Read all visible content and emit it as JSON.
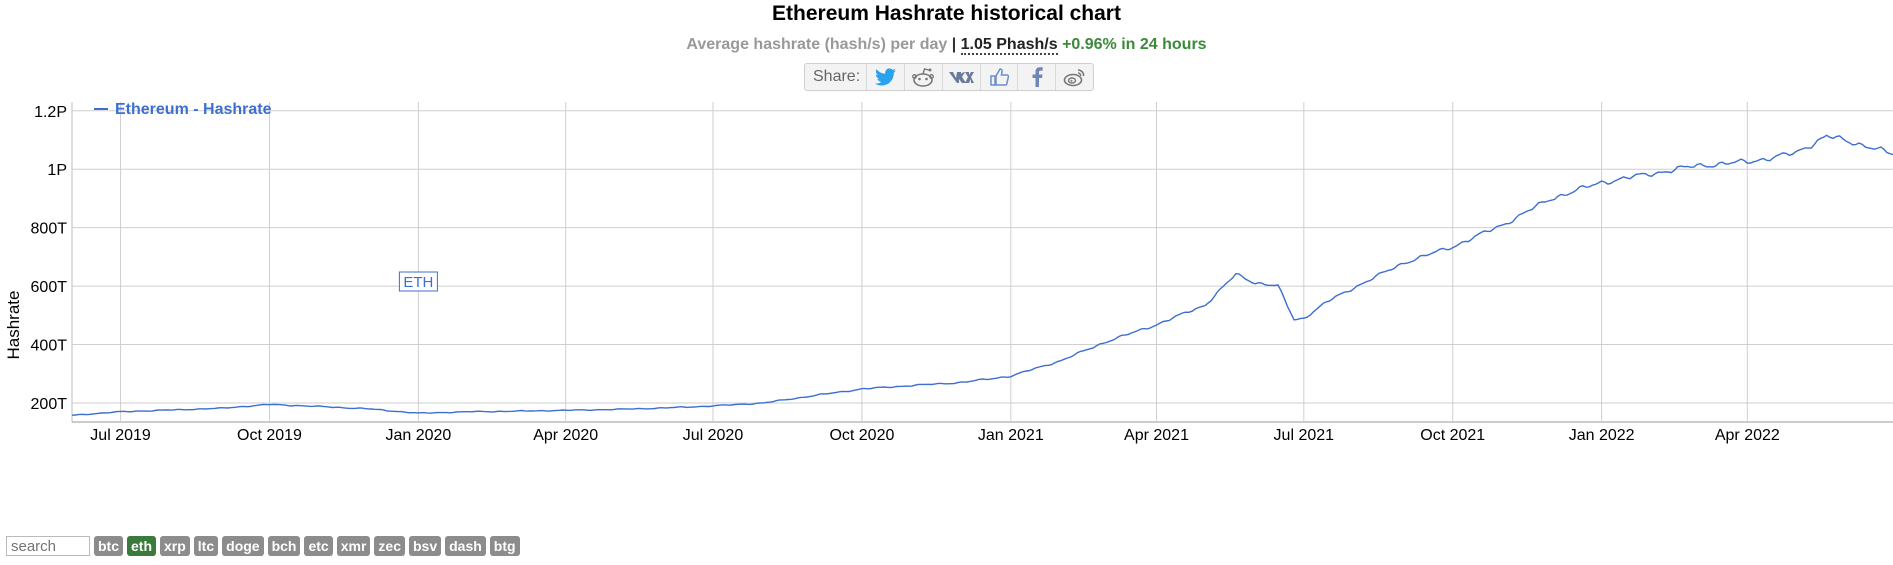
{
  "header": {
    "title": "Ethereum Hashrate historical chart",
    "subtitle_prefix": "Average hashrate (hash/s) per day",
    "separator": "|",
    "current_value": "1.05 Phash/s",
    "change": "+0.96% in 24 hours"
  },
  "share": {
    "label": "Share:",
    "buttons": [
      "twitter-icon",
      "reddit-icon",
      "vk-icon",
      "like-icon",
      "facebook-icon",
      "weibo-icon"
    ]
  },
  "colors": {
    "line": "#3c6fd0",
    "change": "#3a8a3a",
    "grid": "#cfcfcf"
  },
  "chart_data": {
    "type": "line",
    "ylabel": "Hashrate",
    "ylim": [
      135,
      1230
    ],
    "xlim": [
      "2019-06-01",
      "2022-06-30"
    ],
    "yticks": [
      200,
      400,
      600,
      800,
      1000,
      1200
    ],
    "ytick_labels": [
      "200T",
      "400T",
      "600T",
      "800T",
      "1P",
      "1.2P"
    ],
    "xticks": [
      "2019-07-01",
      "2019-10-01",
      "2020-01-01",
      "2020-04-01",
      "2020-07-01",
      "2020-10-01",
      "2021-01-01",
      "2021-04-01",
      "2021-07-01",
      "2021-10-01",
      "2022-01-01",
      "2022-04-01"
    ],
    "xtick_labels": [
      "Jul 2019",
      "Oct 2019",
      "Jan 2020",
      "Apr 2020",
      "Jul 2020",
      "Oct 2020",
      "Jan 2021",
      "Apr 2021",
      "Jul 2021",
      "Oct 2021",
      "Jan 2022",
      "Apr 2022"
    ],
    "grid": true,
    "legend_position": "top-left",
    "series": [
      {
        "name": "Ethereum - Hashrate",
        "units": "TH/s",
        "x": [
          "2019-06-01",
          "2019-07-01",
          "2019-08-01",
          "2019-09-01",
          "2019-10-01",
          "2019-11-01",
          "2019-12-01",
          "2020-01-01",
          "2020-02-01",
          "2020-03-01",
          "2020-04-01",
          "2020-05-01",
          "2020-06-01",
          "2020-07-01",
          "2020-08-01",
          "2020-09-01",
          "2020-10-01",
          "2020-11-01",
          "2020-12-01",
          "2021-01-01",
          "2021-02-01",
          "2021-03-01",
          "2021-04-01",
          "2021-05-01",
          "2021-05-20",
          "2021-06-01",
          "2021-06-15",
          "2021-06-25",
          "2021-07-01",
          "2021-07-15",
          "2021-08-01",
          "2021-09-01",
          "2021-10-01",
          "2021-11-01",
          "2021-12-01",
          "2022-01-01",
          "2022-02-01",
          "2022-03-01",
          "2022-04-01",
          "2022-05-01",
          "2022-05-20",
          "2022-06-01",
          "2022-06-15",
          "2022-06-30"
        ],
        "y": [
          158,
          170,
          176,
          182,
          195,
          188,
          180,
          165,
          170,
          172,
          175,
          178,
          183,
          190,
          200,
          225,
          248,
          260,
          270,
          292,
          345,
          410,
          468,
          535,
          640,
          612,
          600,
          485,
          490,
          545,
          595,
          680,
          735,
          810,
          900,
          955,
          985,
          1012,
          1025,
          1055,
          1115,
          1095,
          1080,
          1050
        ]
      }
    ],
    "annotation": {
      "label": "ETH",
      "x": "2020-01-01"
    }
  },
  "coins": [
    "btc",
    "eth",
    "xrp",
    "ltc",
    "doge",
    "bch",
    "etc",
    "xmr",
    "zec",
    "bsv",
    "dash",
    "btg"
  ],
  "active_coin": "eth",
  "search": {
    "placeholder": "search"
  }
}
